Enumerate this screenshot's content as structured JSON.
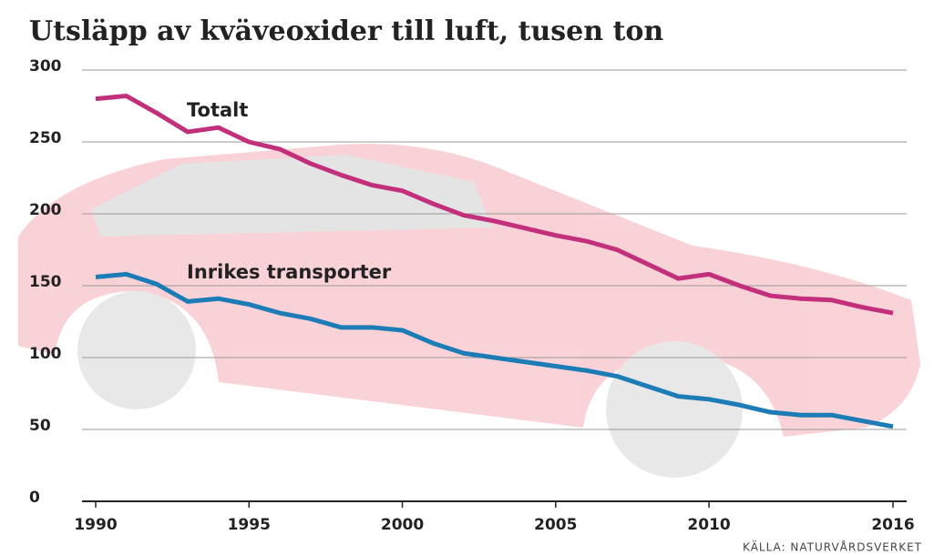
{
  "chart_data": {
    "type": "line",
    "title": "Utsläpp av kväveoxider till luft, tusen ton",
    "source": "KÄLLA: NATURVÅRDSVERKET",
    "x": [
      1990,
      1991,
      1992,
      1993,
      1994,
      1995,
      1996,
      1997,
      1998,
      1999,
      2000,
      2001,
      2002,
      2003,
      2004,
      2005,
      2006,
      2007,
      2008,
      2009,
      2010,
      2011,
      2012,
      2013,
      2014,
      2015,
      2016
    ],
    "series": [
      {
        "name": "Totalt",
        "color": "#c2307c",
        "values": [
          280,
          282,
          270,
          257,
          260,
          250,
          245,
          235,
          227,
          220,
          216,
          207,
          199,
          195,
          190,
          185,
          181,
          175,
          165,
          155,
          158,
          150,
          143,
          141,
          140,
          135,
          131
        ]
      },
      {
        "name": "Inrikes transporter",
        "color": "#1c7cb6",
        "values": [
          156,
          158,
          151,
          139,
          141,
          137,
          131,
          127,
          121,
          121,
          119,
          110,
          103,
          100,
          97,
          94,
          91,
          87,
          80,
          73,
          71,
          67,
          62,
          60,
          60,
          56,
          52
        ]
      }
    ],
    "xlim": [
      1990,
      2016
    ],
    "xticks": [
      1990,
      1995,
      2000,
      2005,
      2010,
      2016
    ],
    "ylim": [
      0,
      300
    ],
    "yticks": [
      0,
      50,
      100,
      150,
      200,
      250,
      300
    ],
    "grid": true
  }
}
